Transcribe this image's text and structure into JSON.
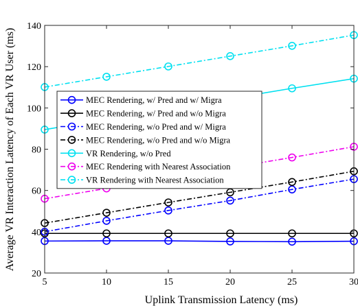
{
  "chart_data": {
    "type": "line",
    "xlabel": "Uplink Transmission Latency (ms)",
    "ylabel": "Average VR Interaction Latency of Each VR User (ms)",
    "xlim": [
      5,
      30
    ],
    "ylim": [
      20,
      140
    ],
    "xticks": [
      5,
      10,
      15,
      20,
      25,
      30
    ],
    "yticks": [
      20,
      40,
      60,
      80,
      100,
      120,
      140
    ],
    "grid": false,
    "legend_position": "center-left",
    "x": [
      5,
      10,
      15,
      20,
      25,
      30
    ],
    "series": [
      {
        "name": "MEC Rendering, w/ Pred and w/ Migra",
        "values": [
          35.5,
          35.6,
          35.6,
          35.3,
          35.2,
          35.4
        ],
        "color": "#0000ff",
        "dash": "solid"
      },
      {
        "name": "MEC Rendering, w/ Pred and w/o Migra",
        "values": [
          39.2,
          39.2,
          39.2,
          39.2,
          39.2,
          39.2
        ],
        "color": "#000000",
        "dash": "solid"
      },
      {
        "name": "MEC Rendering, w/o Pred and w/ Migra",
        "values": [
          40.0,
          45.3,
          50.3,
          55.1,
          60.5,
          65.5
        ],
        "color": "#0000ff",
        "dash": "dashdot"
      },
      {
        "name": "MEC Rendering, w/o Pred and w/o Migra",
        "values": [
          44.2,
          49.2,
          54.2,
          59.1,
          64.1,
          69.3
        ],
        "color": "#000000",
        "dash": "dashdot"
      },
      {
        "name": "VR Rendering, w/o Pred",
        "values": [
          89.5,
          94.5,
          99.5,
          104.5,
          109.5,
          114.2
        ],
        "color": "#00e0f0",
        "dash": "solid"
      },
      {
        "name": "MEC Rendering with Nearest Association",
        "values": [
          56.0,
          61.0,
          66.0,
          71.0,
          76.0,
          81.2
        ],
        "color": "#ee00ee",
        "dash": "dashdot"
      },
      {
        "name": "VR Rendering with Nearest Association",
        "values": [
          110.1,
          115.1,
          120.1,
          125.1,
          130.1,
          135.3
        ],
        "color": "#00e0f0",
        "dash": "dashdot"
      }
    ]
  }
}
